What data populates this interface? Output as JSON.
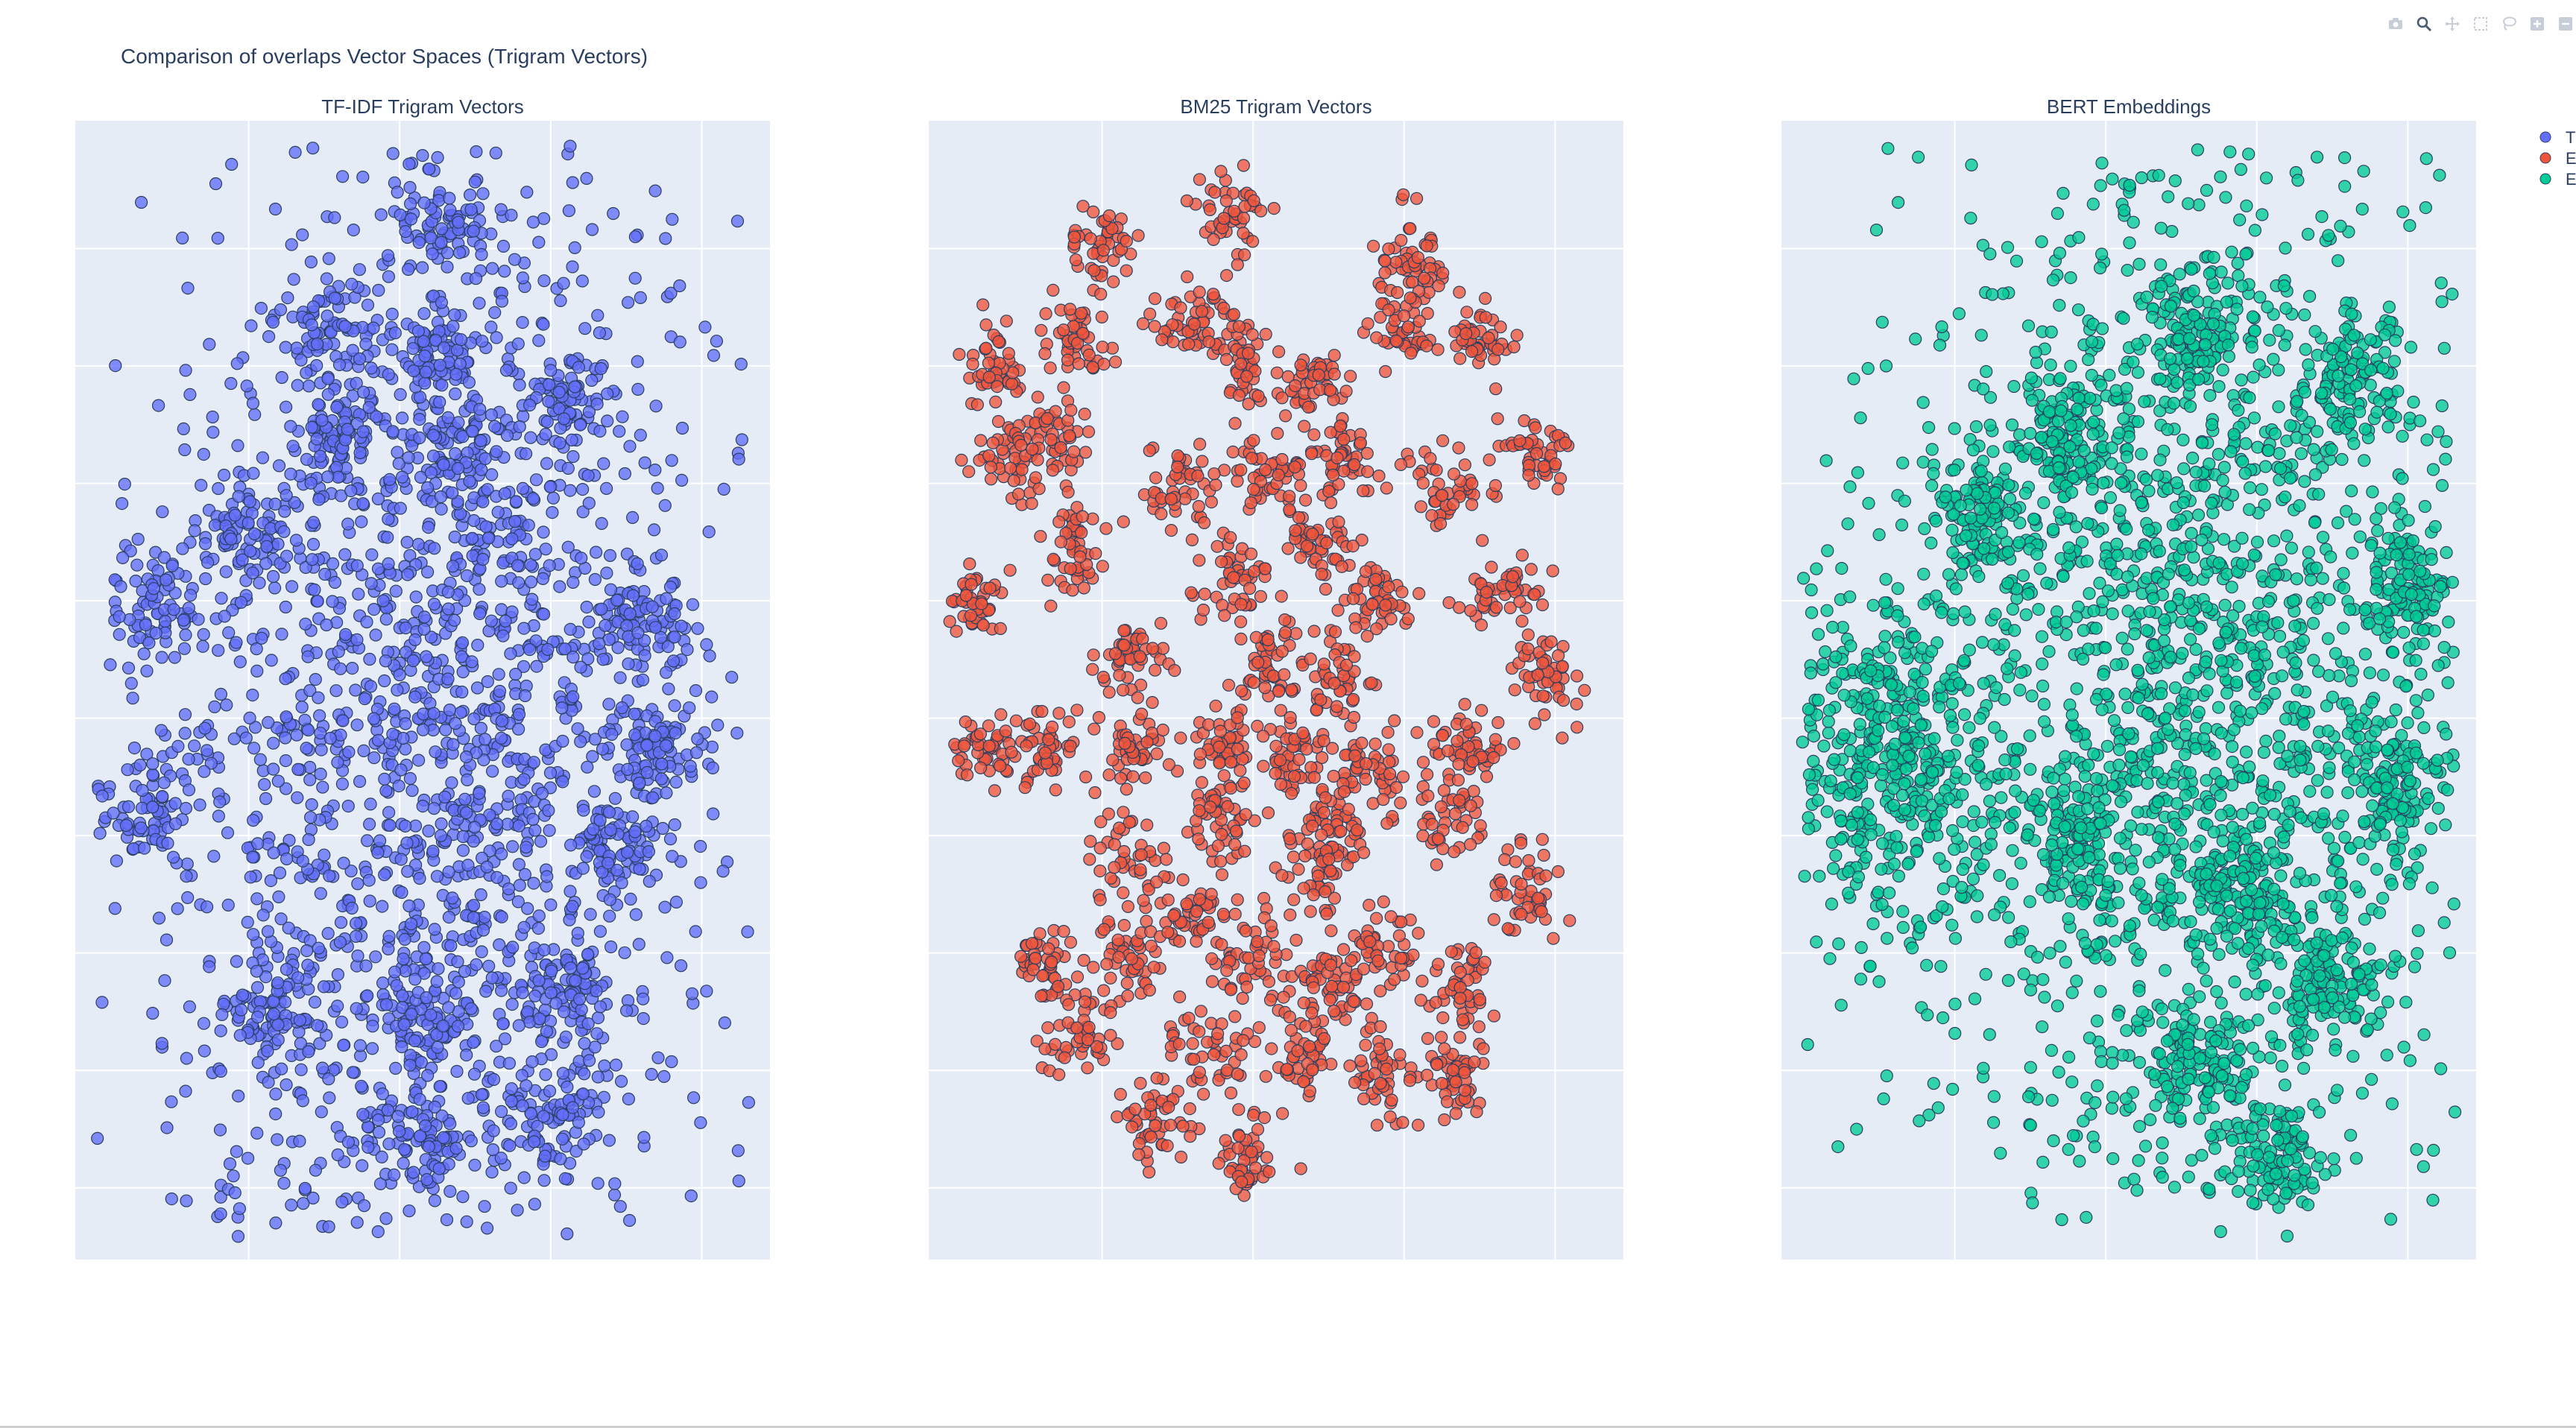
{
  "figure": {
    "title": "Comparison of overlaps Vector Spaces (Trigram Vectors)"
  },
  "modebar": {
    "icons": [
      "camera-icon",
      "zoom-icon",
      "pan-icon",
      "box-select-icon",
      "lasso-icon",
      "zoom-in-icon",
      "zoom-out-icon"
    ]
  },
  "chart_data": [
    {
      "type": "scatter",
      "title": "TF-IDF Trigram Vectors",
      "color": "#636efa",
      "legend_label": "T",
      "shape": "blob-with-satellites",
      "n_points": 3200,
      "seed": 11,
      "xlabel": "",
      "ylabel": "",
      "grid": true
    },
    {
      "type": "scatter",
      "title": "BM25 Trigram Vectors",
      "color": "#ef553b",
      "legend_label": "E",
      "shape": "many-small-clusters",
      "n_points": 2600,
      "seed": 23,
      "xlabel": "",
      "ylabel": "",
      "grid": true
    },
    {
      "type": "scatter",
      "title": "BERT Embeddings",
      "color": "#00cc96",
      "legend_label": "E",
      "shape": "dense-blob-with-side-cluster",
      "n_points": 3600,
      "seed": 37,
      "xlabel": "",
      "ylabel": "",
      "grid": true
    }
  ],
  "colors": {
    "plot_bg": "#e5ecf6",
    "grid": "#ffffff",
    "marker_outline": "#2a3f5f"
  }
}
